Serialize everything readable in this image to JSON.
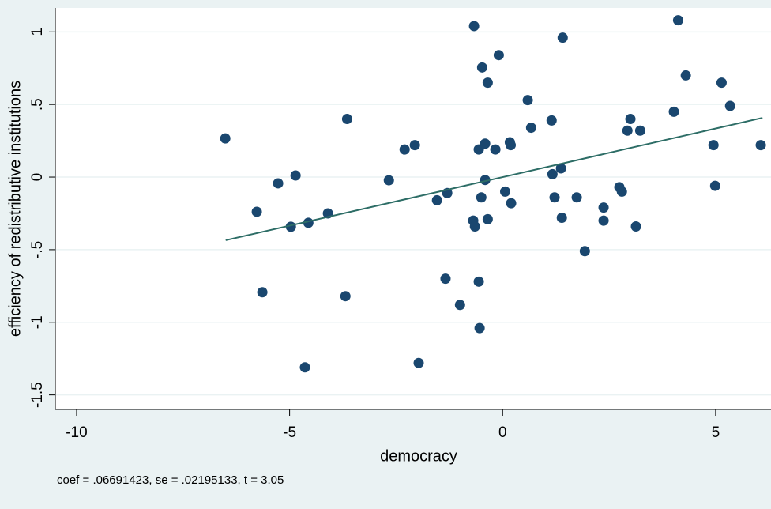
{
  "chart_data": {
    "type": "scatter",
    "x_label": "democracy",
    "y_label": "efficiency of redistributive institutions",
    "note": "coef = .06691423, se = .02195133, t = 3.05",
    "xlim": [
      -10.5,
      6.3
    ],
    "xticks": [
      -10,
      -5,
      0,
      5
    ],
    "ylim": [
      -1.6,
      1.165
    ],
    "yticks": [
      {
        "value": -1.5,
        "label": "-1.5"
      },
      -1,
      {
        "value": -0.5,
        "label": "-.5"
      },
      0,
      {
        "value": 0.5,
        "label": ".5"
      },
      1
    ],
    "grid": true,
    "series": [
      {
        "type": "scatter",
        "color": "#1a476f",
        "x": [
          -6.51,
          -5.77,
          -5.64,
          -5.27,
          -4.97,
          -4.86,
          -4.64,
          -4.56,
          -4.1,
          -3.69,
          -3.65,
          -2.67,
          -2.3,
          -2.06,
          -1.97,
          -1.54,
          -1.34,
          -1.3,
          -1.0,
          -0.67,
          -0.69,
          -0.65,
          -0.56,
          -0.56,
          -0.54,
          -0.5,
          -0.48,
          -0.41,
          -0.41,
          -0.35,
          -0.35,
          -0.17,
          -0.09,
          0.06,
          0.17,
          0.19,
          0.2,
          0.59,
          0.67,
          1.15,
          1.17,
          1.22,
          1.37,
          1.39,
          1.41,
          1.74,
          1.93,
          2.37,
          2.37,
          2.74,
          2.8,
          2.93,
          3.0,
          3.13,
          3.23,
          4.02,
          4.12,
          4.3,
          4.95,
          4.99,
          5.14,
          5.34,
          6.06
        ],
        "values": [
          0.266,
          -0.239,
          -0.793,
          -0.043,
          -0.342,
          0.011,
          -1.31,
          -0.315,
          -0.25,
          -0.82,
          0.4,
          -0.022,
          0.19,
          0.22,
          -1.28,
          -0.16,
          -0.7,
          -0.11,
          -0.88,
          1.04,
          -0.3,
          -0.34,
          0.19,
          -0.72,
          -1.04,
          -0.14,
          0.755,
          -0.02,
          0.23,
          0.65,
          -0.29,
          0.19,
          0.84,
          -0.1,
          0.24,
          0.22,
          -0.18,
          0.53,
          0.34,
          0.39,
          0.02,
          -0.14,
          0.06,
          -0.28,
          0.96,
          -0.14,
          -0.51,
          -0.21,
          -0.3,
          -0.07,
          -0.1,
          0.32,
          0.4,
          -0.34,
          0.32,
          0.45,
          1.08,
          0.7,
          0.22,
          -0.06,
          0.65,
          0.49,
          0.22
        ]
      },
      {
        "type": "line",
        "color": "#2d6d66",
        "x": [
          -6.5,
          6.1
        ],
        "values": [
          -0.435,
          0.408
        ]
      }
    ]
  }
}
